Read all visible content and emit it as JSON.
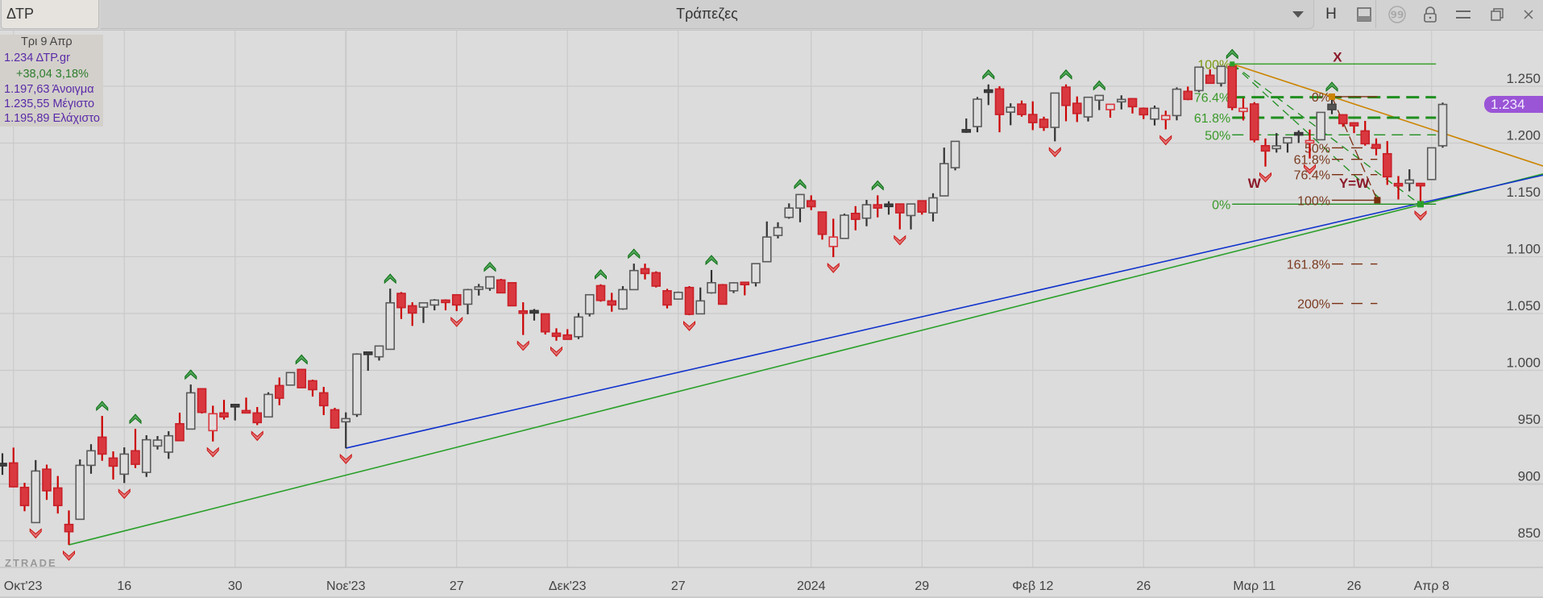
{
  "window": {
    "tab_label": "ΔΤΡ",
    "title": "Τράπεζες",
    "toolbar_icons": [
      "chevron-down-icon",
      "h-icon",
      "panel-icon",
      "quote-icon",
      "lock-icon",
      "menu-icon",
      "restore-icon",
      "close-icon"
    ],
    "toolbar_h_label": "H"
  },
  "info_box": {
    "date": "Τρι 9 Απρ",
    "last": "1.234 ΔΤΡ.gr",
    "change": "+38,04 3,18%",
    "open": "1.197,63 Άνοιγμα",
    "high": "1.235,55 Μέγιστο",
    "low": "1.195,89 Ελάχιστο"
  },
  "colors": {
    "up_outline": "#555555",
    "down_fill": "#d9383f",
    "accent_badge": "#9a55d6",
    "trend_green": "#2aa02a",
    "trend_blue": "#1133cc",
    "trend_orange": "#cc8400",
    "fib_green": "#1f8f1f",
    "fib_brown": "#7a2e10"
  },
  "watermark": "ZTRADE",
  "current_price_badge": "1.234",
  "chart_data": {
    "type": "candlestick",
    "title": "ΔΤΡ",
    "ylim": [
      825,
      1275
    ],
    "y_ticks": [
      {
        "v": 850,
        "label": "850"
      },
      {
        "v": 900,
        "label": "900"
      },
      {
        "v": 950,
        "label": "950"
      },
      {
        "v": 1000,
        "label": "1.000"
      },
      {
        "v": 1050,
        "label": "1.050"
      },
      {
        "v": 1100,
        "label": "1.100"
      },
      {
        "v": 1150,
        "label": "1.150"
      },
      {
        "v": 1200,
        "label": "1.200"
      },
      {
        "v": 1250,
        "label": "1.250"
      }
    ],
    "x_ticks": [
      {
        "bar": 1,
        "label": "Οκτ'23"
      },
      {
        "bar": 11,
        "label": "16"
      },
      {
        "bar": 21,
        "label": "30"
      },
      {
        "bar": 31,
        "label": "Νοε'23"
      },
      {
        "bar": 41,
        "label": "27"
      },
      {
        "bar": 51,
        "label": "Δεκ'23"
      },
      {
        "bar": 61,
        "label": "27"
      },
      {
        "bar": 73,
        "label": "2024"
      },
      {
        "bar": 83,
        "label": "29"
      },
      {
        "bar": 93,
        "label": "Φεβ 12"
      },
      {
        "bar": 103,
        "label": "26"
      },
      {
        "bar": 113,
        "label": "Μαρ 11"
      },
      {
        "bar": 122,
        "label": "26"
      },
      {
        "bar": 129,
        "label": "Απρ 8"
      }
    ],
    "ohlc": [
      [
        917,
        927,
        908,
        917,
        "doji"
      ],
      [
        918.5,
        932,
        897,
        897.5
      ],
      [
        897,
        901,
        876,
        881
      ],
      [
        866,
        921,
        866,
        911.4
      ],
      [
        913,
        917,
        886,
        894
      ],
      [
        896.5,
        907,
        874,
        881
      ],
      [
        864.4,
        876.7,
        846.4,
        858
      ],
      [
        868.9,
        921.6,
        868.9,
        916.4
      ],
      [
        916.4,
        935,
        909,
        929.2
      ],
      [
        941.2,
        959.9,
        920.4,
        926.3
      ],
      [
        922.8,
        928.7,
        903.9,
        915.7
      ],
      [
        908.6,
        932.2,
        900.8,
        926.3
      ],
      [
        929.2,
        948.5,
        914,
        917.3
      ],
      [
        910.2,
        942.9,
        906.2,
        938.9
      ],
      [
        933.4,
        942.2,
        930.3,
        938.6
      ],
      [
        928,
        946.4,
        922.1,
        942.4
      ],
      [
        953,
        962.7,
        938,
        938.1
      ],
      [
        948.3,
        987.5,
        948,
        980.2
      ],
      [
        983.8,
        984,
        962,
        963
      ],
      [
        946.9,
        968.9,
        937.4,
        961.8,
        "hollow-red"
      ],
      [
        962.5,
        974,
        956.6,
        959
      ],
      [
        968.9,
        969,
        955.9,
        968.9,
        "doji"
      ],
      [
        964.6,
        976,
        962.5,
        962.5
      ],
      [
        962.5,
        967.7,
        951.8,
        954
      ],
      [
        959,
        980.7,
        959,
        978.8
      ],
      [
        986.6,
        993.7,
        969.3,
        975.5
      ],
      [
        987,
        998,
        987,
        998
      ],
      [
        1000.8,
        1000.8,
        984.7,
        984.7
      ],
      [
        990.8,
        991.8,
        976.9,
        983
      ],
      [
        980.2,
        985.4,
        960.6,
        968.9
      ],
      [
        965.3,
        967,
        948.8,
        949.3
      ],
      [
        954.7,
        963,
        931.5,
        957.5
      ],
      [
        961.1,
        1015,
        959,
        1014.3
      ],
      [
        1015,
        1015.5,
        999.6,
        1015,
        "doji"
      ],
      [
        1011.9,
        1021.4,
        1008.6,
        1021.4
      ],
      [
        1018.5,
        1071.9,
        1018.5,
        1059.4
      ],
      [
        1067.7,
        1068.9,
        1045.2,
        1055.2
      ],
      [
        1056.8,
        1059.9,
        1039.1,
        1050.4
      ],
      [
        1055.6,
        1059.4,
        1041.7,
        1059.4
      ],
      [
        1057.5,
        1062.7,
        1052.8,
        1061.8
      ],
      [
        1061.8,
        1062.5,
        1052.8,
        1061.1
      ],
      [
        1066.5,
        1066.5,
        1052.1,
        1057.5
      ],
      [
        1058.2,
        1071.7,
        1049.3,
        1071
      ],
      [
        1072.2,
        1076,
        1065.8,
        1073.4
      ],
      [
        1072.2,
        1082.3,
        1070,
        1082.3
      ],
      [
        1079.5,
        1080.5,
        1068.2,
        1068.2
      ],
      [
        1077.1,
        1077.1,
        1056.8,
        1056.8
      ],
      [
        1052.3,
        1059.9,
        1031.1,
        1050.4
      ],
      [
        1051.5,
        1054,
        1043.8,
        1051.5,
        "doji"
      ],
      [
        1049.7,
        1049.7,
        1031.5,
        1033.9
      ],
      [
        1032.7,
        1037,
        1026,
        1029.9
      ],
      [
        1031.1,
        1036.2,
        1027.3,
        1027.3
      ],
      [
        1029.6,
        1050.4,
        1027.5,
        1046.9
      ],
      [
        1049.7,
        1066.5,
        1047.4,
        1066.5
      ],
      [
        1074.5,
        1075.7,
        1060.4,
        1061.5
      ],
      [
        1061.1,
        1068.2,
        1051.6,
        1057.5
      ],
      [
        1054,
        1074.1,
        1053.3,
        1071
      ],
      [
        1071,
        1093.9,
        1071,
        1087.8
      ],
      [
        1089.4,
        1093.9,
        1080,
        1085.2
      ],
      [
        1085.9,
        1087.1,
        1072.9,
        1074.1
      ],
      [
        1070,
        1071.7,
        1054.5,
        1057.5
      ],
      [
        1062.7,
        1069.3,
        1062.3,
        1068.6
      ],
      [
        1072.9,
        1074.1,
        1048.5,
        1049.3
      ],
      [
        1049.7,
        1072.9,
        1049.7,
        1061.1
      ],
      [
        1068.2,
        1088.3,
        1067.5,
        1077.1
      ],
      [
        1075.3,
        1076,
        1058,
        1058.2
      ],
      [
        1070,
        1077.5,
        1068,
        1077
      ],
      [
        1077.5,
        1077.7,
        1066,
        1076
      ],
      [
        1077.1,
        1093.9,
        1073.8,
        1093.9
      ],
      [
        1095.6,
        1131,
        1095.6,
        1117.3
      ],
      [
        1118.7,
        1130.3,
        1116.1,
        1125.6
      ],
      [
        1134.6,
        1146.9,
        1133.4,
        1142.8
      ],
      [
        1142.8,
        1155.1,
        1130.3,
        1154.7
      ],
      [
        1149.2,
        1154,
        1141,
        1144
      ],
      [
        1139.3,
        1139.3,
        1115,
        1119.7
      ],
      [
        1109,
        1133.4,
        1099.6,
        1117.3,
        "hollow-red"
      ],
      [
        1116.1,
        1137.9,
        1115.6,
        1136.5
      ],
      [
        1138.1,
        1144.5,
        1123.2,
        1132.9
      ],
      [
        1133.9,
        1150,
        1126.8,
        1145.7
      ],
      [
        1145.7,
        1154,
        1134.6,
        1142.8
      ],
      [
        1145.2,
        1148.8,
        1137,
        1145.2,
        "doji"
      ],
      [
        1146.4,
        1146.4,
        1124,
        1138.6
      ],
      [
        1136.2,
        1146.4,
        1124,
        1146.4
      ],
      [
        1149.2,
        1149.2,
        1137,
        1139.3
      ],
      [
        1138.6,
        1155.8,
        1131,
        1151.8
      ],
      [
        1153.5,
        1196,
        1153.5,
        1181.9
      ],
      [
        1178.3,
        1201.5,
        1176,
        1201.5
      ],
      [
        1210.7,
        1221.6,
        1209,
        1210.7,
        "doji"
      ],
      [
        1214.5,
        1240.5,
        1209.5,
        1238.6
      ],
      [
        1245.7,
        1251.6,
        1233.4,
        1245.7,
        "doji"
      ],
      [
        1247.6,
        1250,
        1209.5,
        1225.1
      ],
      [
        1227.2,
        1235,
        1215.7,
        1231.5
      ],
      [
        1234.3,
        1237.4,
        1223.2,
        1225.1
      ],
      [
        1225.1,
        1236.7,
        1211.4,
        1218
      ],
      [
        1220.9,
        1223.2,
        1210.7,
        1213.8
      ],
      [
        1213.8,
        1244,
        1201.5,
        1244
      ],
      [
        1249.2,
        1251.6,
        1219.2,
        1233.1
      ],
      [
        1235,
        1241,
        1218.5,
        1226
      ],
      [
        1223,
        1240.3,
        1219,
        1240.3
      ],
      [
        1237.7,
        1241.9,
        1229,
        1241.9
      ],
      [
        1229.4,
        1234.1,
        1222.3,
        1234.1,
        "hollow-red"
      ],
      [
        1236.5,
        1242,
        1229.6,
        1238.4
      ],
      [
        1239.1,
        1239.1,
        1226,
        1232
      ],
      [
        1230.6,
        1231.3,
        1221.1,
        1224.9
      ],
      [
        1221.1,
        1233,
        1215.5,
        1230.6
      ],
      [
        1220.7,
        1228.5,
        1212,
        1224.2,
        "hollow-red"
      ],
      [
        1224.2,
        1249,
        1220,
        1247.4
      ],
      [
        1245.5,
        1249.7,
        1237.7,
        1238.4
      ],
      [
        1246.2,
        1266.8,
        1244.8,
        1266.8
      ],
      [
        1259.7,
        1264.9,
        1252.6,
        1252.6
      ],
      [
        1252.6,
        1268,
        1249.7,
        1267.5
      ],
      [
        1267.5,
        1269.6,
        1228.9,
        1231.3
      ],
      [
        1227.8,
        1239.6,
        1219.9,
        1230.6,
        "hollow-red"
      ],
      [
        1234.4,
        1236,
        1200.6,
        1202.9
      ],
      [
        1197.7,
        1204,
        1179.3,
        1193
      ],
      [
        1195.1,
        1208.8,
        1191.6,
        1197.5
      ],
      [
        1200.1,
        1204.8,
        1191.6,
        1204.8
      ],
      [
        1208.1,
        1211.2,
        1200.1,
        1208.1,
        "doji"
      ],
      [
        1200.1,
        1211.9,
        1186.4,
        1202.2,
        "hollow-red"
      ],
      [
        1202.9,
        1227,
        1202.9,
        1227
      ],
      [
        1234.1,
        1240.8,
        1225.4,
        1229.4,
        "dark"
      ],
      [
        1224.9,
        1224.9,
        1214.3,
        1217.1
      ],
      [
        1217.8,
        1217.8,
        1208.8,
        1215.2
      ],
      [
        1210.7,
        1219.5,
        1197.7,
        1199.4
      ],
      [
        1198.7,
        1204.1,
        1189.2,
        1195.4
      ],
      [
        1190.6,
        1201.7,
        1163.2,
        1170.3
      ],
      [
        1164.4,
        1171,
        1150.4,
        1163.5
      ],
      [
        1164.6,
        1176.9,
        1157.5,
        1167.5
      ],
      [
        1164.5,
        1165,
        1145.7,
        1163.5
      ],
      [
        1167.9,
        1195.8,
        1167.9,
        1195.8
      ],
      [
        1197.6,
        1235.6,
        1195.9,
        1234
      ]
    ],
    "signals_up": [
      9,
      12,
      17,
      27,
      35,
      44,
      54,
      57,
      64,
      72,
      79,
      89,
      96,
      99,
      111,
      120
    ],
    "signals_down": [
      3,
      6,
      11,
      19,
      23,
      31,
      41,
      47,
      50,
      62,
      75,
      81,
      95,
      105,
      114,
      118,
      128
    ],
    "trendlines": [
      {
        "name": "green-trendline",
        "color": "#2aa02a",
        "from": [
          6,
          846.4
        ],
        "to": [
          128,
          1145.7
        ],
        "extend": true
      },
      {
        "name": "blue-trendline",
        "color": "#1133cc",
        "from": [
          31,
          931.5
        ],
        "to": [
          128,
          1147.2
        ],
        "extend": true
      },
      {
        "name": "orange-trendline",
        "color": "#cc8400",
        "from": [
          111,
          1269.6
        ],
        "to": [
          120,
          1240.8
        ],
        "extend": true
      }
    ],
    "fib_retracement": {
      "color": "#1f8f1f",
      "from_bar": 111,
      "to_bar": 129.4,
      "levels": [
        {
          "label": "100%",
          "price": 1269.6,
          "style": "solid"
        },
        {
          "label": "76.4%",
          "price": 1240.3,
          "style": "thick-dash"
        },
        {
          "label": "61.8%",
          "price": 1222.3,
          "style": "thick-dash"
        },
        {
          "label": "50%",
          "price": 1207.2,
          "style": "dash"
        },
        {
          "label": "0%",
          "price": 1146.2,
          "style": "solid"
        }
      ]
    },
    "fib_extension": {
      "color": "#7a2e10",
      "from_bar": 120,
      "to_bar": 124.1,
      "levels": [
        {
          "label": "0%",
          "price": 1240.8,
          "style": "solid"
        },
        {
          "label": "50%",
          "price": 1195.8,
          "style": "dash"
        },
        {
          "label": "61.8%",
          "price": 1185.7,
          "style": "dash"
        },
        {
          "label": "76.4%",
          "price": 1172.2,
          "style": "dash"
        },
        {
          "label": "100%",
          "price": 1149.7,
          "style": "solid"
        },
        {
          "label": "161.8%",
          "price": 1093.6,
          "style": "dash"
        },
        {
          "label": "200%",
          "price": 1058.8,
          "style": "dash"
        }
      ]
    },
    "wave_labels": [
      {
        "text": "X",
        "bar": 120.5,
        "price": 1276
      },
      {
        "text": "W",
        "bar": 113,
        "price": 1165
      },
      {
        "text": "Y=W",
        "bar": 122,
        "price": 1165
      }
    ]
  }
}
